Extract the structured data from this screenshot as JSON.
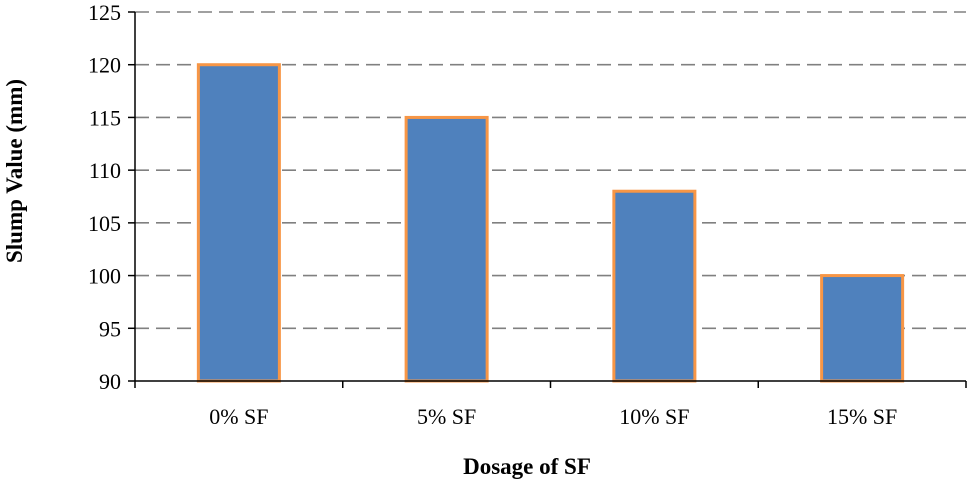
{
  "chart_data": {
    "type": "bar",
    "title": "",
    "xlabel": "Dosage of SF",
    "ylabel": "Slump Value (mm)",
    "categories": [
      "0% SF",
      "5% SF",
      "10% SF",
      "15% SF"
    ],
    "values": [
      120,
      115,
      108,
      100
    ],
    "ylim": [
      90,
      125
    ],
    "yticks": [
      90,
      95,
      100,
      105,
      110,
      115,
      120,
      125
    ],
    "grid": true,
    "grid_style": "dashed",
    "legend": "none",
    "colors": {
      "bar_fill": "#4F81BD",
      "bar_border": "#F79646",
      "grid": "#808080",
      "axis": "#000000"
    }
  }
}
